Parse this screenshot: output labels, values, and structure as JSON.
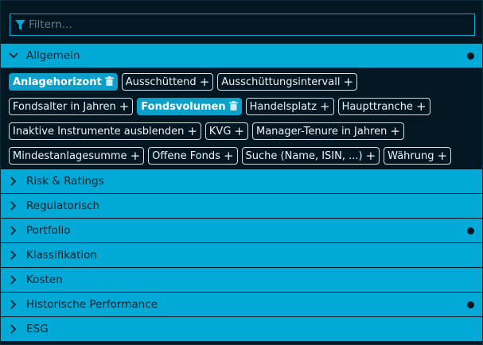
{
  "filter": {
    "placeholder": "Filtern...",
    "value": ""
  },
  "colors": {
    "accent": "#01a9d6",
    "background": "#021722"
  },
  "sections": [
    {
      "label": "Allgemein",
      "expanded": true,
      "has_active": true
    },
    {
      "label": "Risk & Ratings",
      "expanded": false,
      "has_active": false
    },
    {
      "label": "Regulatorisch",
      "expanded": false,
      "has_active": false
    },
    {
      "label": "Portfolio",
      "expanded": false,
      "has_active": true
    },
    {
      "label": "Klassifikation",
      "expanded": false,
      "has_active": false
    },
    {
      "label": "Kosten",
      "expanded": false,
      "has_active": false
    },
    {
      "label": "Historische Performance",
      "expanded": false,
      "has_active": true
    },
    {
      "label": "ESG",
      "expanded": false,
      "has_active": false
    }
  ],
  "chips": [
    {
      "label": "Anlagehorizont",
      "active": true
    },
    {
      "label": "Ausschüttend",
      "active": false
    },
    {
      "label": "Ausschüttungsintervall",
      "active": false
    },
    {
      "label": "Fondsalter in Jahren",
      "active": false
    },
    {
      "label": "Fondsvolumen",
      "active": true
    },
    {
      "label": "Handelsplatz",
      "active": false
    },
    {
      "label": "Haupttranche",
      "active": false
    },
    {
      "label": "Inaktive Instrumente ausblenden",
      "active": false
    },
    {
      "label": "KVG",
      "active": false
    },
    {
      "label": "Manager-Tenure in Jahren",
      "active": false
    },
    {
      "label": "Mindestanlagesumme",
      "active": false
    },
    {
      "label": "Offene Fonds",
      "active": false
    },
    {
      "label": "Suche (Name, ISIN, ...)",
      "active": false
    },
    {
      "label": "Währung",
      "active": false
    }
  ]
}
